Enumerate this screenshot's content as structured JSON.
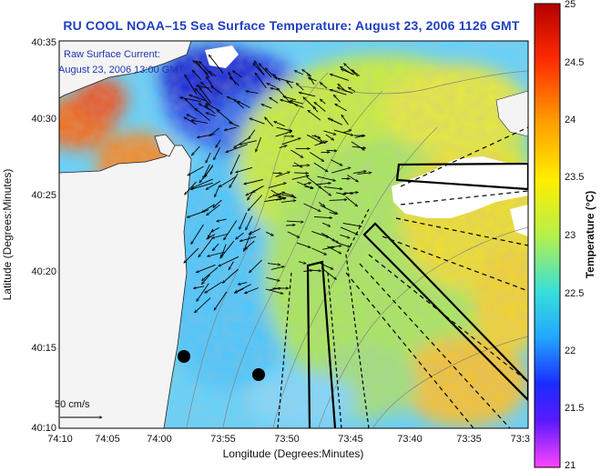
{
  "title": "RU COOL  NOAA–15  Sea Surface Temperature:  August 23, 2006 1126 GMT",
  "current_label_line1": "Raw Surface Current:",
  "current_label_line2": "August 23, 2006 13:00 GMT",
  "scale_label": "50 cm/s",
  "x_axis_label": "Longitude (Degrees:Minutes)",
  "y_axis_label": "Latitude (Degrees:Minutes)",
  "colorbar_label": "Temperature (°C)",
  "x_ticks": [
    "74:10",
    "74:05",
    "74:00",
    "73:55",
    "73:50",
    "73:45",
    "73:40",
    "73:35",
    "73:3"
  ],
  "y_ticks": [
    "40:35",
    "40:30",
    "40:25",
    "40:20",
    "40:15",
    "40:10"
  ],
  "colorbar_ticks": [
    "25",
    "24.5",
    "24",
    "23.5",
    "23",
    "22.5",
    "22",
    "21.5",
    "21"
  ],
  "colors": {
    "land": "#f4f4f4",
    "title": "#1f3fbf",
    "frame": "#000000"
  }
}
